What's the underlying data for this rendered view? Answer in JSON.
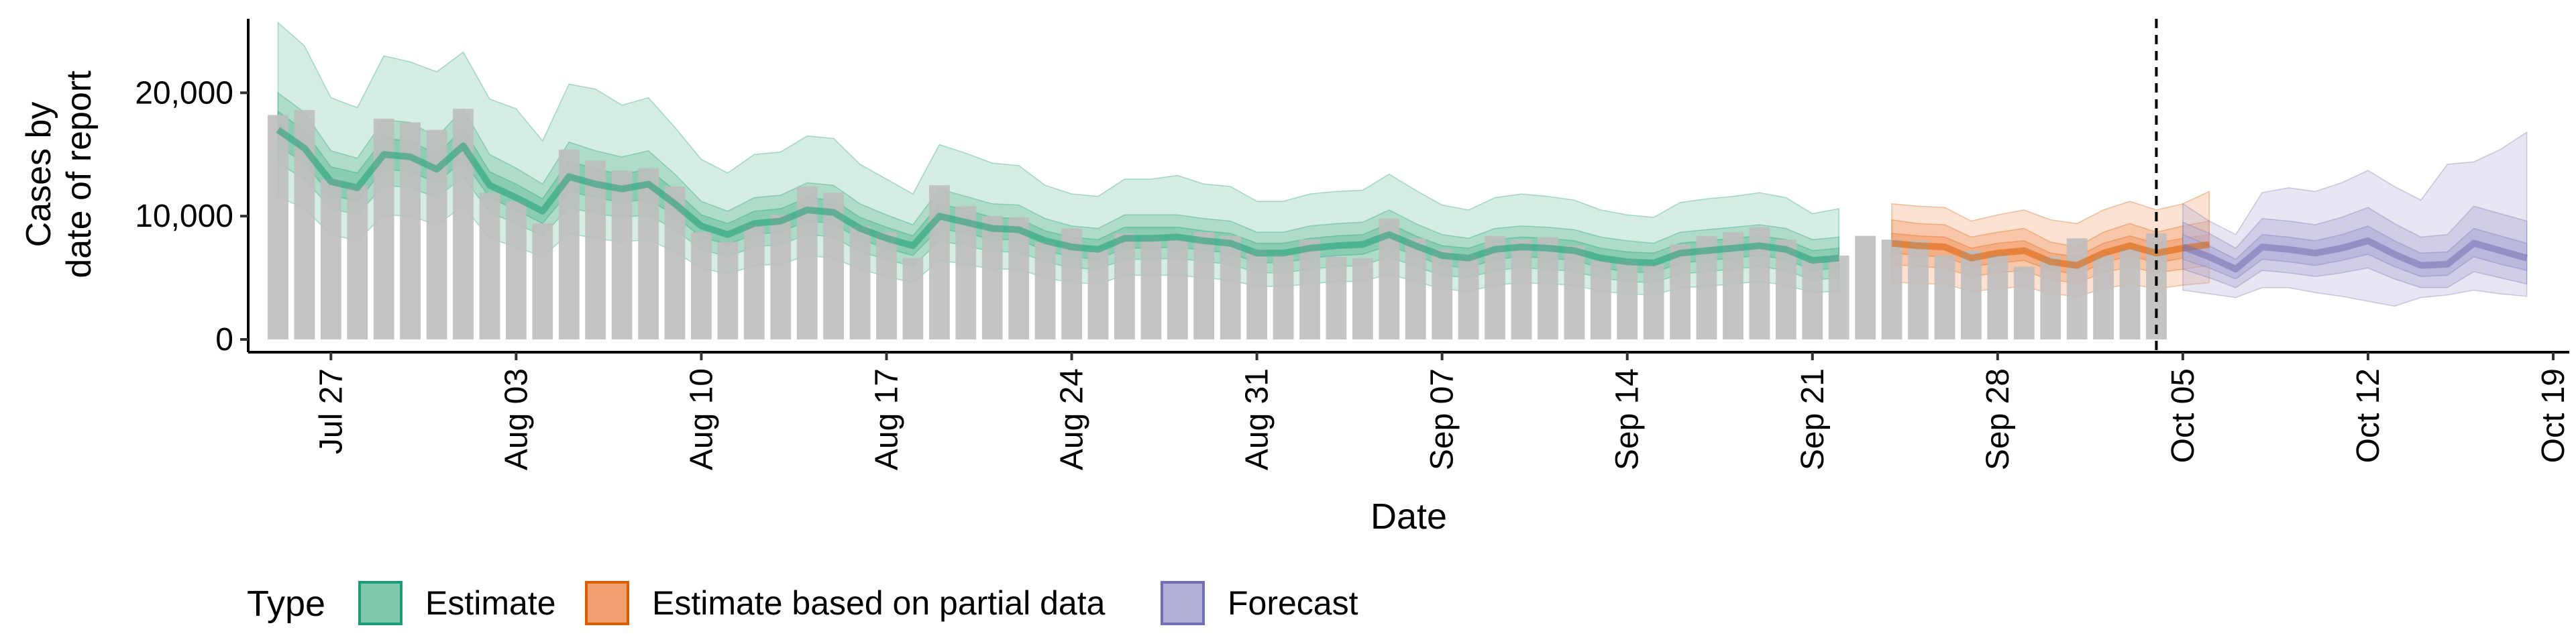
{
  "chart_data": {
    "type": "bar",
    "title": "",
    "ylabel_lines": [
      "Cases by",
      "date of report"
    ],
    "xlabel": "Date",
    "ylim": [
      0,
      26000
    ],
    "yticks": [
      0,
      10000,
      20000
    ],
    "ytick_labels": [
      "0",
      "10,000",
      "20,000"
    ],
    "x_start": "2020-07-24",
    "x_end": "2020-10-19",
    "xticks": [
      "2020-07-27",
      "2020-08-03",
      "2020-08-10",
      "2020-08-17",
      "2020-08-24",
      "2020-08-31",
      "2020-09-07",
      "2020-09-14",
      "2020-09-21",
      "2020-09-28",
      "2020-10-05",
      "2020-10-12",
      "2020-10-19"
    ],
    "xtick_labels": [
      "Jul 27",
      "Aug 03",
      "Aug 10",
      "Aug 17",
      "Aug 24",
      "Aug 31",
      "Sep 07",
      "Sep 14",
      "Sep 21",
      "Sep 28",
      "Oct 05",
      "Oct 12",
      "Oct 19"
    ],
    "vline_date": "2020-10-04",
    "reported_cases": {
      "start": "2020-07-25",
      "color": "#bebebe",
      "values": [
        18200,
        18600,
        13000,
        12500,
        17900,
        17600,
        17000,
        18700,
        11900,
        11200,
        9400,
        15400,
        14500,
        13700,
        13900,
        12400,
        8700,
        7900,
        9300,
        10100,
        12400,
        11900,
        9200,
        8700,
        6600,
        12500,
        10800,
        10000,
        9900,
        7900,
        9000,
        7300,
        8600,
        8300,
        8100,
        8700,
        8400,
        7300,
        6900,
        8100,
        6700,
        6600,
        9800,
        8200,
        7300,
        6900,
        8400,
        8100,
        8300,
        7600,
        6400,
        6500,
        6100,
        7700,
        8400,
        8700,
        9100,
        8100,
        6500,
        6800,
        8400,
        8100,
        8000,
        6800,
        7200,
        6900,
        5900,
        6700,
        8200,
        6800,
        7400,
        8600
      ]
    },
    "series": [
      {
        "name": "Estimate",
        "color": "#1b9e77",
        "fill": "#7fc8a9",
        "start": "2020-07-25",
        "median": [
          17000,
          15500,
          12800,
          12300,
          15000,
          14800,
          13800,
          15700,
          12500,
          11500,
          10400,
          13200,
          12600,
          12200,
          12600,
          11000,
          9200,
          8500,
          9400,
          9600,
          10500,
          10300,
          9000,
          8200,
          7600,
          10000,
          9500,
          9000,
          8900,
          8000,
          7500,
          7300,
          8200,
          8200,
          8300,
          8000,
          7800,
          7000,
          7000,
          7400,
          7600,
          7700,
          8500,
          7600,
          6800,
          6600,
          7300,
          7500,
          7400,
          7200,
          6600,
          6300,
          6200,
          7000,
          7200,
          7400,
          7600,
          7300,
          6400,
          6600
        ],
        "inner_lo": [
          15700,
          14300,
          11700,
          11200,
          13800,
          13600,
          12700,
          14500,
          11500,
          10500,
          9400,
          12000,
          11500,
          11100,
          11400,
          10000,
          8300,
          7700,
          8500,
          8700,
          9600,
          9400,
          8100,
          7400,
          6800,
          9000,
          8600,
          8100,
          8100,
          7200,
          6700,
          6500,
          7400,
          7400,
          7500,
          7200,
          7000,
          6200,
          6200,
          6600,
          6800,
          6900,
          7600,
          6800,
          6000,
          5800,
          6500,
          6700,
          6600,
          6400,
          5800,
          5500,
          5400,
          6200,
          6400,
          6600,
          6800,
          6500,
          5600,
          5800
        ],
        "inner_hi": [
          18500,
          16900,
          14000,
          13500,
          16300,
          16100,
          15000,
          17100,
          13600,
          12600,
          11400,
          14500,
          13800,
          13400,
          13800,
          12100,
          10100,
          9400,
          10400,
          10600,
          11500,
          11300,
          9900,
          9100,
          8400,
          11000,
          10500,
          9900,
          9800,
          8800,
          8300,
          8100,
          9100,
          9100,
          9100,
          8800,
          8600,
          7800,
          7800,
          8200,
          8400,
          8500,
          9400,
          8400,
          7600,
          7400,
          8100,
          8300,
          8200,
          8000,
          7400,
          7100,
          7000,
          7800,
          8000,
          8200,
          8400,
          8100,
          7200,
          7400
        ],
        "mid_lo": [
          14300,
          13000,
          10600,
          10100,
          12500,
          12300,
          11500,
          13200,
          10300,
          9400,
          8400,
          10700,
          10200,
          9900,
          10100,
          8900,
          7300,
          6700,
          7500,
          7700,
          8500,
          8300,
          7100,
          6500,
          5900,
          8000,
          7600,
          7100,
          7100,
          6300,
          5800,
          5700,
          6500,
          6500,
          6600,
          6300,
          6100,
          5400,
          5400,
          5700,
          5900,
          6000,
          6700,
          5900,
          5200,
          5000,
          5600,
          5800,
          5700,
          5500,
          5000,
          4700,
          4600,
          5300,
          5500,
          5700,
          5900,
          5600,
          4800,
          5000
        ],
        "mid_hi": [
          20000,
          18400,
          15300,
          14700,
          17800,
          17600,
          16400,
          18700,
          15000,
          13900,
          12600,
          16000,
          15300,
          14800,
          15300,
          13400,
          11200,
          10400,
          11500,
          11700,
          12700,
          12500,
          11000,
          10100,
          9300,
          12200,
          11600,
          11000,
          10900,
          9800,
          9200,
          9000,
          10100,
          10100,
          10100,
          9800,
          9600,
          8700,
          8700,
          9200,
          9400,
          9500,
          10500,
          9400,
          8500,
          8200,
          9000,
          9200,
          9100,
          8900,
          8300,
          8000,
          7800,
          8700,
          8900,
          9100,
          9300,
          9000,
          8100,
          8300
        ],
        "outer_lo": [
          11600,
          10600,
          8500,
          8000,
          10100,
          10000,
          9300,
          10800,
          8200,
          7500,
          6700,
          8600,
          8200,
          7900,
          8100,
          7100,
          5800,
          5300,
          6000,
          6100,
          6800,
          6600,
          5700,
          5100,
          4600,
          6400,
          6100,
          5700,
          5700,
          5000,
          4600,
          4500,
          5200,
          5200,
          5200,
          5000,
          4800,
          4300,
          4300,
          4500,
          4700,
          4700,
          5300,
          4700,
          4100,
          3900,
          4400,
          4600,
          4500,
          4400,
          3900,
          3700,
          3600,
          4200,
          4300,
          4500,
          4700,
          4400,
          3800,
          3900
        ],
        "outer_hi": [
          25700,
          23800,
          19600,
          18800,
          23000,
          22500,
          21700,
          23300,
          19500,
          18700,
          16100,
          20700,
          20300,
          19000,
          19600,
          17200,
          14600,
          13500,
          15000,
          15200,
          16500,
          16300,
          14200,
          13000,
          11800,
          15800,
          15100,
          14300,
          14100,
          12500,
          11800,
          11600,
          13000,
          13000,
          13300,
          12600,
          12400,
          11200,
          11200,
          11800,
          12000,
          12100,
          13400,
          12100,
          10900,
          10500,
          11500,
          11800,
          11600,
          11300,
          10500,
          10100,
          9900,
          11100,
          11400,
          11600,
          11900,
          11500,
          10200,
          10600
        ]
      },
      {
        "name": "Estimate based on partial data",
        "color": "#d95f02",
        "fill": "#f4a677",
        "start": "2020-09-24",
        "median": [
          7800,
          7600,
          7500,
          6600,
          7000,
          7200,
          6300,
          6000,
          7000,
          7600,
          7000,
          7400,
          7700
        ],
        "inner_lo": [
          7000,
          6800,
          6700,
          5900,
          6200,
          6400,
          5600,
          5300,
          6200,
          6800,
          6200,
          6600,
          6900
        ],
        "inner_hi": [
          8600,
          8400,
          8300,
          7400,
          7800,
          8000,
          7000,
          6700,
          7800,
          8400,
          7800,
          8200,
          8500
        ],
        "mid_lo": [
          6100,
          5900,
          5800,
          5100,
          5400,
          5600,
          4800,
          4600,
          5400,
          5900,
          5400,
          5700,
          6000
        ],
        "mid_hi": [
          9700,
          9400,
          9300,
          8300,
          8700,
          9000,
          7900,
          7500,
          8700,
          9400,
          8700,
          9200,
          9600
        ],
        "outer_lo": [
          4700,
          4500,
          4500,
          3900,
          4100,
          4300,
          3700,
          3500,
          4100,
          4500,
          4100,
          4400,
          4600
        ],
        "outer_hi": [
          11000,
          10800,
          10700,
          9600,
          10100,
          10500,
          9700,
          9400,
          10500,
          11200,
          10500,
          11000,
          12000
        ]
      },
      {
        "name": "Forecast",
        "color": "#7570b3",
        "fill": "#b3b0d8",
        "start": "2020-10-05",
        "median": [
          7500,
          6700,
          5700,
          7500,
          7300,
          7000,
          7400,
          8000,
          6900,
          6000,
          6100,
          7800,
          7200,
          6600
        ],
        "inner_lo": [
          6500,
          5800,
          4900,
          6500,
          6300,
          6000,
          6400,
          6900,
          5900,
          5100,
          5200,
          6700,
          6100,
          5600
        ],
        "inner_hi": [
          8500,
          7600,
          6500,
          8500,
          8300,
          8000,
          8500,
          9200,
          8000,
          7000,
          7100,
          9000,
          8400,
          7800
        ],
        "mid_lo": [
          5700,
          5000,
          4200,
          5600,
          5400,
          5100,
          5400,
          5800,
          4900,
          4200,
          4200,
          5500,
          5000,
          4500
        ],
        "mid_hi": [
          9500,
          8600,
          7400,
          9800,
          9600,
          9300,
          9900,
          10700,
          9400,
          8300,
          8500,
          10800,
          10200,
          9600
        ],
        "outer_lo": [
          4000,
          3700,
          3400,
          4200,
          4200,
          3800,
          3500,
          3100,
          2700,
          3400,
          3600,
          4000,
          3700,
          3500
        ],
        "outer_hi": [
          11000,
          9600,
          8500,
          11900,
          12300,
          12000,
          12700,
          13700,
          12400,
          11300,
          14200,
          14400,
          15400,
          16800
        ]
      }
    ],
    "legend": {
      "title": "Type",
      "position": "bottom-left",
      "entries": [
        "Estimate",
        "Estimate based on partial data",
        "Forecast"
      ]
    },
    "grid": false
  }
}
